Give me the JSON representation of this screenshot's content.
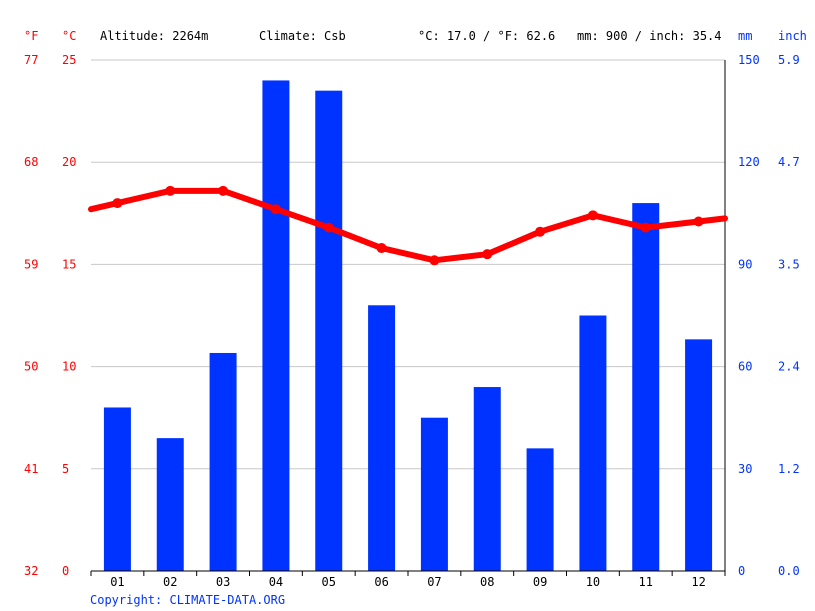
{
  "header": {
    "unit_f": "°F",
    "unit_c": "°C",
    "altitude": "Altitude: 2264m",
    "climate": "Climate: Csb",
    "temp_avg": "°C: 17.0 / °F: 62.6",
    "precip_total": "mm: 900 / inch: 35.4",
    "unit_mm": "mm",
    "unit_inch": "inch"
  },
  "axes": {
    "f_ticks": [
      "77",
      "68",
      "59",
      "50",
      "41",
      "32"
    ],
    "c_ticks": [
      "25",
      "20",
      "15",
      "10",
      "5",
      "0"
    ],
    "mm_ticks": [
      "150",
      "120",
      "90",
      "60",
      "30",
      "0"
    ],
    "inch_ticks": [
      "5.9",
      "4.7",
      "3.5",
      "2.4",
      "1.2",
      "0.0"
    ]
  },
  "copyright": "Copyright: CLIMATE-DATA.ORG",
  "colors": {
    "temperature": "#ff0000",
    "precipitation": "#0033ff",
    "grid": "#c8c8c8"
  },
  "chart_data": {
    "type": "bar",
    "categories": [
      "01",
      "02",
      "03",
      "04",
      "05",
      "06",
      "07",
      "08",
      "09",
      "10",
      "11",
      "12"
    ],
    "series": [
      {
        "type": "bar",
        "axis": "mm",
        "values": [
          48,
          39,
          64,
          144,
          141,
          78,
          45,
          54,
          36,
          75,
          108,
          68
        ]
      },
      {
        "type": "line",
        "axis": "°C",
        "values": [
          18.0,
          18.6,
          18.6,
          17.7,
          16.8,
          15.8,
          15.2,
          15.5,
          16.6,
          17.4,
          16.8,
          17.1
        ]
      }
    ],
    "temp_ylim": [
      0,
      25
    ],
    "precip_ylim": [
      0,
      150
    ],
    "grid": true
  }
}
